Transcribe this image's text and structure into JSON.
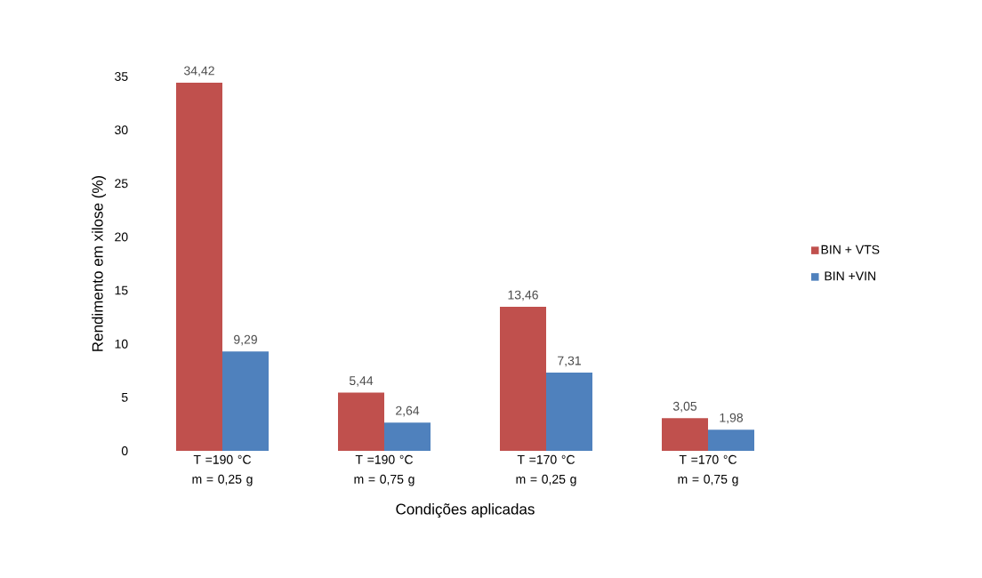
{
  "chart_data": {
    "type": "bar",
    "xlabel": "Condições aplicadas",
    "ylabel": "Rendimento em xilose (%)",
    "categories": [
      "T =190 °C m = 0,25 g",
      "T =190 °C m = 0,75 g",
      "T =170 °C m = 0,25 g",
      "T =170 °C m = 0,75 g"
    ],
    "series": [
      {
        "name": "BIN + VTS",
        "color": "#c0504d",
        "values": [
          34.42,
          5.44,
          13.46,
          3.05
        ],
        "value_labels": [
          "34,42",
          "5,44",
          "13,46",
          "3,05"
        ]
      },
      {
        "name": "BIN +VIN",
        "color": "#4f81bd",
        "values": [
          9.29,
          2.64,
          7.31,
          1.98
        ],
        "value_labels": [
          "9,29",
          "2,64",
          "7,31",
          "1,98"
        ]
      }
    ],
    "ylim": [
      0,
      35
    ],
    "yticks": [
      0,
      5,
      10,
      15,
      20,
      25,
      30,
      35
    ],
    "grid": false,
    "legend": "right"
  }
}
